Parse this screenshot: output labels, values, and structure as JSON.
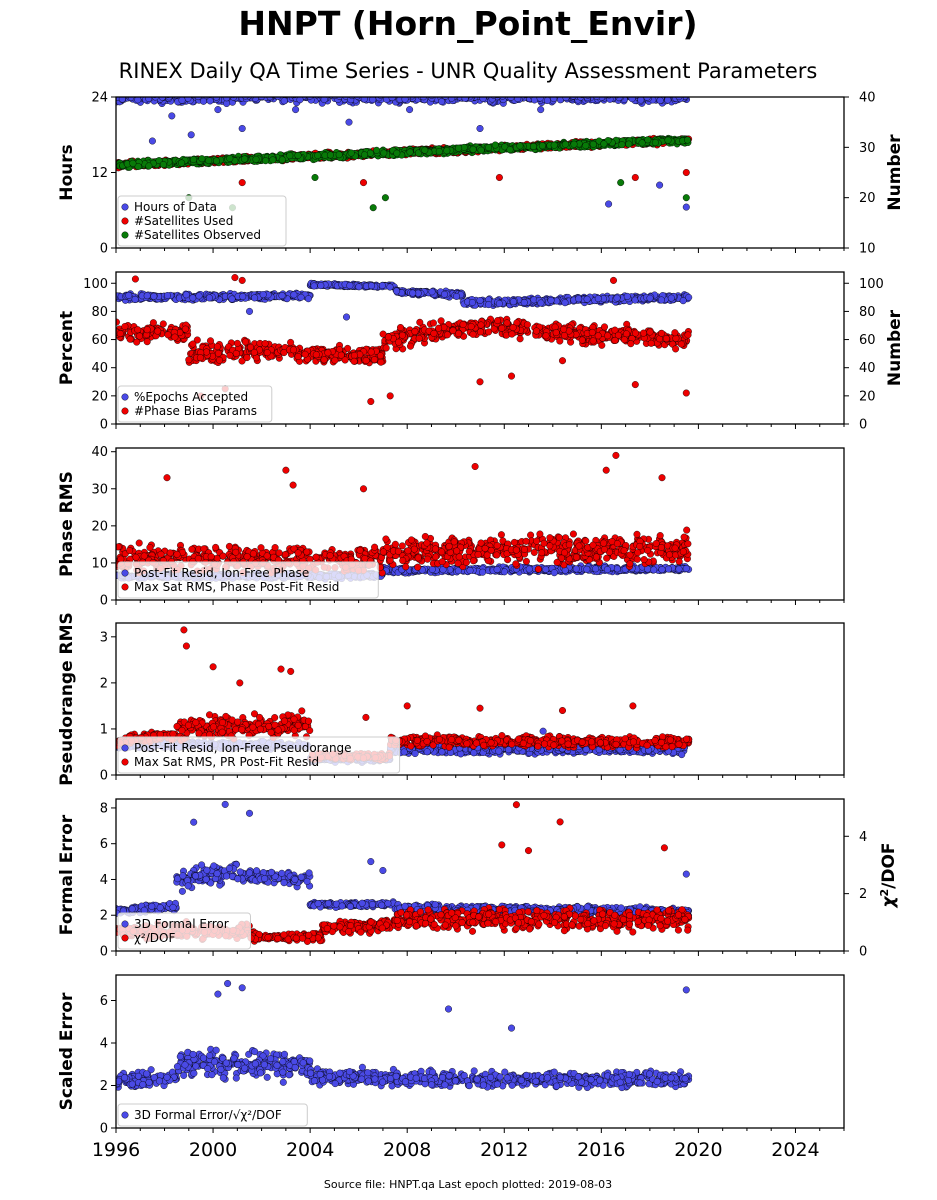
{
  "title": "HNPT (Horn_Point_Envir)",
  "subtitle": "RINEX Daily QA Time Series - UNR Quality Assessment Parameters",
  "footer": "Source file: HNPT.qa Last epoch plotted: 2019-08-03",
  "colors": {
    "blue": "#4a4ae6",
    "red": "#ee0000",
    "green": "#087a08"
  },
  "chart_data": [
    {
      "type": "scatter",
      "ylabel": "Hours",
      "y2label": "Number",
      "xlim": [
        1996,
        2026
      ],
      "xticks": [
        1996,
        2000,
        2004,
        2008,
        2012,
        2016,
        2020,
        2024
      ],
      "ylim": [
        0,
        24
      ],
      "yticks": [
        0,
        12,
        24
      ],
      "y2lim": [
        10,
        40
      ],
      "y2ticks": [
        10,
        20,
        30,
        40
      ],
      "legend": "lower-left",
      "series": [
        {
          "name": "Hours of Data",
          "axis": "left",
          "color": "blue",
          "segments": [
            {
              "x": [
                1996.0,
                2019.6
              ],
              "y": [
                24,
                24
              ],
              "spread": 1.2
            }
          ],
          "outliers": [
            [
              1997.5,
              17
            ],
            [
              1998.3,
              21
            ],
            [
              1999.1,
              18
            ],
            [
              2000.2,
              22
            ],
            [
              2001.2,
              19
            ],
            [
              2003.4,
              22
            ],
            [
              2005.6,
              20
            ],
            [
              2008.1,
              22
            ],
            [
              2011.0,
              19
            ],
            [
              2013.5,
              22
            ],
            [
              2016.3,
              7
            ],
            [
              2018.4,
              10
            ],
            [
              2019.5,
              6.5
            ]
          ]
        },
        {
          "name": "#Satellites Used",
          "axis": "right",
          "color": "red",
          "segments": [
            {
              "x": [
                1996.0,
                2019.6
              ],
              "y": [
                26.5,
                31.5
              ],
              "spread": 0.8
            }
          ],
          "outliers": [
            [
              2001.2,
              23
            ],
            [
              2006.2,
              23
            ],
            [
              2011.8,
              24
            ],
            [
              2017.4,
              24
            ],
            [
              2019.5,
              25
            ]
          ]
        },
        {
          "name": "#Satellites Observed",
          "axis": "right",
          "color": "green",
          "segments": [
            {
              "x": [
                1996.0,
                2019.6
              ],
              "y": [
                26.5,
                31.5
              ],
              "spread": 0.8
            }
          ],
          "outliers": [
            [
              1999.0,
              20
            ],
            [
              2000.8,
              18
            ],
            [
              2004.2,
              24
            ],
            [
              2006.6,
              18
            ],
            [
              2007.1,
              20
            ],
            [
              2016.8,
              23
            ],
            [
              2019.5,
              20
            ]
          ]
        }
      ]
    },
    {
      "type": "scatter",
      "ylabel": "Percent",
      "y2label": "Number",
      "xlim": [
        1996,
        2026
      ],
      "ylim": [
        0,
        108
      ],
      "yticks": [
        0,
        20,
        40,
        60,
        80,
        100
      ],
      "y2lim": [
        0,
        108
      ],
      "y2ticks": [
        0,
        20,
        40,
        60,
        80,
        100
      ],
      "legend": "lower-left",
      "series": [
        {
          "name": "%Epochs Accepted",
          "axis": "left",
          "color": "blue",
          "segments": [
            {
              "x": [
                1996.0,
                2004.0
              ],
              "y": [
                90,
                91
              ],
              "spread": 3
            },
            {
              "x": [
                2004.0,
                2007.5
              ],
              "y": [
                99,
                98
              ],
              "spread": 1.5
            },
            {
              "x": [
                2007.5,
                2010.3
              ],
              "y": [
                94,
                92
              ],
              "spread": 2.5
            },
            {
              "x": [
                2010.3,
                2019.6
              ],
              "y": [
                86,
                90
              ],
              "spread": 3
            }
          ],
          "outliers": [
            [
              2005.5,
              76
            ],
            [
              2001.5,
              80
            ]
          ]
        },
        {
          "name": "#Phase Bias Params",
          "axis": "right",
          "color": "red",
          "segments": [
            {
              "x": [
                1996.0,
                1999.0
              ],
              "y": [
                65,
                65
              ],
              "spread": 9
            },
            {
              "x": [
                1999.0,
                2001.5
              ],
              "y": [
                50,
                52
              ],
              "spread": 10
            },
            {
              "x": [
                2001.5,
                2007.0
              ],
              "y": [
                52,
                48
              ],
              "spread": 8
            },
            {
              "x": [
                2007.0,
                2010.5
              ],
              "y": [
                60,
                68
              ],
              "spread": 10
            },
            {
              "x": [
                2010.5,
                2019.6
              ],
              "y": [
                70,
                60
              ],
              "spread": 9
            }
          ],
          "outliers": [
            [
              1996.8,
              103
            ],
            [
              2000.9,
              104
            ],
            [
              2001.2,
              102
            ],
            [
              1999.5,
              20
            ],
            [
              2000.5,
              25
            ],
            [
              2006.5,
              16
            ],
            [
              2007.3,
              20
            ],
            [
              2011.0,
              30
            ],
            [
              2012.3,
              34
            ],
            [
              2014.4,
              45
            ],
            [
              2016.5,
              102
            ],
            [
              2017.4,
              28
            ],
            [
              2019.5,
              22
            ]
          ]
        }
      ]
    },
    {
      "type": "scatter",
      "ylabel": "Phase RMS",
      "xlim": [
        1996,
        2026
      ],
      "ylim": [
        0,
        41
      ],
      "yticks": [
        0,
        10,
        20,
        30,
        40
      ],
      "legend": "lower-left",
      "series": [
        {
          "name": "Post-Fit Resid, Ion-Free Phase",
          "axis": "left",
          "color": "blue",
          "segments": [
            {
              "x": [
                1996.0,
                2007.0
              ],
              "y": [
                6.5,
                6.5
              ],
              "spread": 1
            },
            {
              "x": [
                2007.0,
                2019.6
              ],
              "y": [
                8,
                8.5
              ],
              "spread": 1
            }
          ],
          "outliers": []
        },
        {
          "name": "Max Sat RMS, Phase Post-Fit Resid",
          "axis": "left",
          "color": "red",
          "segments": [
            {
              "x": [
                1996.0,
                2007.0
              ],
              "y": [
                11,
                11
              ],
              "spread": 5
            },
            {
              "x": [
                2007.0,
                2019.6
              ],
              "y": [
                13,
                14
              ],
              "spread": 5.5
            }
          ],
          "outliers": [
            [
              1998.1,
              33
            ],
            [
              2003.0,
              35
            ],
            [
              2003.3,
              31
            ],
            [
              2006.2,
              30
            ],
            [
              2010.8,
              36
            ],
            [
              2016.2,
              35
            ],
            [
              2016.6,
              39
            ],
            [
              2018.5,
              33
            ]
          ]
        }
      ]
    },
    {
      "type": "scatter",
      "ylabel": "Pseudorange RMS",
      "xlim": [
        1996,
        2026
      ],
      "ylim": [
        0,
        3.3
      ],
      "yticks": [
        0,
        1,
        2,
        3
      ],
      "legend": "lower-left",
      "series": [
        {
          "name": "Post-Fit Resid, Ion-Free Pseudorange",
          "axis": "left",
          "color": "blue",
          "segments": [
            {
              "x": [
                1996.0,
                2004.0
              ],
              "y": [
                0.65,
                0.65
              ],
              "spread": 0.1
            },
            {
              "x": [
                2004.0,
                2007.3
              ],
              "y": [
                0.35,
                0.35
              ],
              "spread": 0.08
            },
            {
              "x": [
                2007.3,
                2019.6
              ],
              "y": [
                0.55,
                0.55
              ],
              "spread": 0.12
            }
          ],
          "outliers": [
            [
              2013.6,
              0.95
            ]
          ]
        },
        {
          "name": "Max Sat RMS, PR Post-Fit Resid",
          "axis": "left",
          "color": "red",
          "segments": [
            {
              "x": [
                1996.0,
                1998.5
              ],
              "y": [
                0.75,
                0.85
              ],
              "spread": 0.15
            },
            {
              "x": [
                1998.5,
                2004.0
              ],
              "y": [
                1.0,
                1.1
              ],
              "spread": 0.35
            },
            {
              "x": [
                2004.0,
                2007.3
              ],
              "y": [
                0.4,
                0.4
              ],
              "spread": 0.1
            },
            {
              "x": [
                2007.3,
                2019.6
              ],
              "y": [
                0.75,
                0.7
              ],
              "spread": 0.15
            }
          ],
          "outliers": [
            [
              1998.8,
              3.15
            ],
            [
              1998.9,
              2.8
            ],
            [
              2000.0,
              2.35
            ],
            [
              2001.1,
              2.0
            ],
            [
              2002.8,
              2.3
            ],
            [
              2003.2,
              2.25
            ],
            [
              2006.3,
              1.25
            ],
            [
              2008.0,
              1.5
            ],
            [
              2011.0,
              1.45
            ],
            [
              2014.4,
              1.4
            ],
            [
              2017.3,
              1.5
            ]
          ]
        }
      ]
    },
    {
      "type": "scatter",
      "ylabel": "Formal Error",
      "y2label": "χ²/DOF",
      "xlim": [
        1996,
        2026
      ],
      "ylim": [
        0,
        8.5
      ],
      "yticks": [
        0,
        2,
        4,
        6,
        8
      ],
      "y2lim": [
        0,
        5.3
      ],
      "y2ticks": [
        0,
        2,
        4
      ],
      "legend": "lower-left",
      "series": [
        {
          "name": "3D Formal Error",
          "axis": "left",
          "color": "blue",
          "segments": [
            {
              "x": [
                1996.0,
                1998.5
              ],
              "y": [
                2.2,
                2.5
              ],
              "spread": 0.3
            },
            {
              "x": [
                1998.5,
                2001.0
              ],
              "y": [
                4.0,
                4.5
              ],
              "spread": 0.8
            },
            {
              "x": [
                2001.0,
                2004.0
              ],
              "y": [
                4.2,
                4.0
              ],
              "spread": 0.5
            },
            {
              "x": [
                2004.0,
                2007.5
              ],
              "y": [
                2.6,
                2.6
              ],
              "spread": 0.2
            },
            {
              "x": [
                2007.5,
                2019.6
              ],
              "y": [
                2.4,
                2.2
              ],
              "spread": 0.3
            }
          ],
          "outliers": [
            [
              1999.2,
              7.2
            ],
            [
              2000.5,
              8.2
            ],
            [
              2001.5,
              7.7
            ],
            [
              2006.5,
              5.0
            ],
            [
              2007.0,
              4.5
            ],
            [
              2019.5,
              4.3
            ]
          ]
        },
        {
          "name": "χ²/DOF",
          "axis": "right",
          "color": "red",
          "segments": [
            {
              "x": [
                1996.0,
                2001.5
              ],
              "y": [
                0.7,
                0.7
              ],
              "spread": 0.35
            },
            {
              "x": [
                2001.5,
                2004.5
              ],
              "y": [
                0.5,
                0.5
              ],
              "spread": 0.2
            },
            {
              "x": [
                2004.5,
                2007.5
              ],
              "y": [
                0.8,
                0.9
              ],
              "spread": 0.3
            },
            {
              "x": [
                2007.5,
                2019.6
              ],
              "y": [
                1.1,
                1.1
              ],
              "spread": 0.5
            }
          ],
          "outliers": [
            [
              2012.5,
              5.1
            ],
            [
              2014.3,
              4.5
            ],
            [
              2018.6,
              3.6
            ],
            [
              2011.9,
              3.7
            ],
            [
              2013.0,
              3.5
            ]
          ]
        }
      ]
    },
    {
      "type": "scatter",
      "ylabel": "Scaled Error",
      "xlim": [
        1996,
        2026
      ],
      "ylim": [
        0,
        7.2
      ],
      "yticks": [
        0,
        2,
        4,
        6
      ],
      "legend": "lower-left",
      "series": [
        {
          "name": "3D Formal Error/√χ²/DOF",
          "axis": "left",
          "color": "blue",
          "segments": [
            {
              "x": [
                1996.0,
                1998.5
              ],
              "y": [
                2.2,
                2.4
              ],
              "spread": 0.5
            },
            {
              "x": [
                1998.5,
                2004.0
              ],
              "y": [
                3.0,
                3.0
              ],
              "spread": 0.9
            },
            {
              "x": [
                2004.0,
                2007.5
              ],
              "y": [
                2.4,
                2.4
              ],
              "spread": 0.5
            },
            {
              "x": [
                2007.5,
                2019.6
              ],
              "y": [
                2.3,
                2.3
              ],
              "spread": 0.5
            }
          ],
          "outliers": [
            [
              2000.6,
              6.8
            ],
            [
              2001.2,
              6.6
            ],
            [
              2000.2,
              6.3
            ],
            [
              2009.7,
              5.6
            ],
            [
              2012.3,
              4.7
            ],
            [
              2019.5,
              6.5
            ]
          ]
        }
      ]
    }
  ]
}
